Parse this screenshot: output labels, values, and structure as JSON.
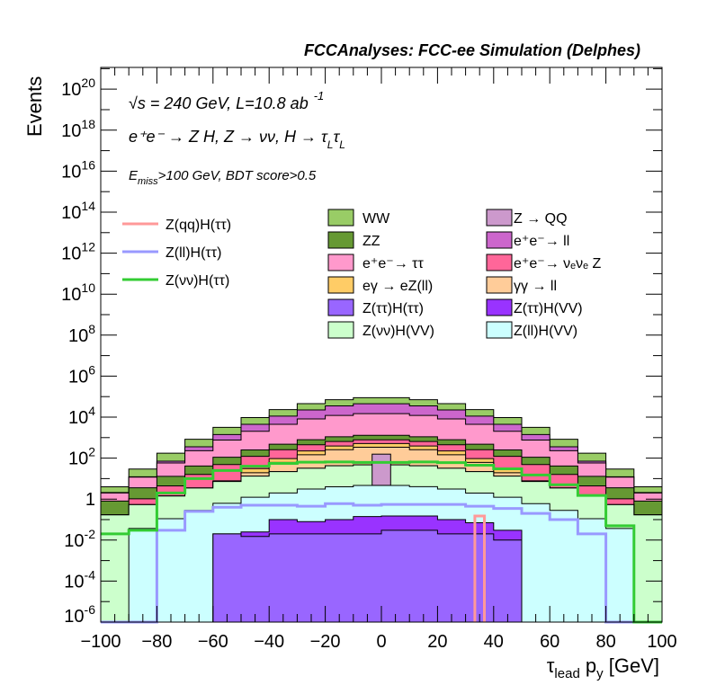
{
  "chart_data": {
    "type": "bar",
    "subtype": "stacked-histogram-log",
    "title": "FCCAnalyses: FCC-ee Simulation (Delphes)",
    "xlabel": {
      "main": "τ",
      "sub": "lead",
      "mid": " p",
      "sub2": "y",
      "unit": " [GeV]"
    },
    "ylabel": "Events",
    "xlim": [
      -100,
      100
    ],
    "ylim": [
      1e-06,
      1.15e+21
    ],
    "yscale": "log",
    "x_ticks": [
      -100,
      -80,
      -60,
      -40,
      -20,
      0,
      20,
      40,
      60,
      80,
      100
    ],
    "x_tick_labels": [
      "−100",
      "−80",
      "−60",
      "−40",
      "−20",
      "0",
      "20",
      "40",
      "60",
      "80",
      "100"
    ],
    "y_ticks": [
      {
        "base": "10",
        "exp": "20",
        "value": 1e+20
      },
      {
        "base": "10",
        "exp": "18",
        "value": 1e+18
      },
      {
        "base": "10",
        "exp": "16",
        "value": 1e+16
      },
      {
        "base": "10",
        "exp": "14",
        "value": 100000000000000.0
      },
      {
        "base": "10",
        "exp": "12",
        "value": 1000000000000.0
      },
      {
        "base": "10",
        "exp": "10",
        "value": 10000000000.0
      },
      {
        "base": "10",
        "exp": "8",
        "value": 100000000.0
      },
      {
        "base": "10",
        "exp": "6",
        "value": 1000000.0
      },
      {
        "base": "10",
        "exp": "4",
        "value": 10000.0
      },
      {
        "base": "10",
        "exp": "2",
        "value": 100.0
      },
      {
        "base": "1",
        "exp": "",
        "value": 1
      },
      {
        "base": "10",
        "exp": "-2",
        "value": 0.01
      },
      {
        "base": "10",
        "exp": "-4",
        "value": 0.0001
      },
      {
        "base": "10",
        "exp": "-6",
        "value": 1e-06
      }
    ],
    "annotations": {
      "energy": {
        "sqrt": "√",
        "text": "s = 240 GeV, L=10.8 ab",
        "sup": "-1"
      },
      "process": {
        "text": "e⁺e⁻ → Z H, Z → νν, H → τ",
        "sub1": "L",
        "mid": "τ",
        "sub2": "L"
      },
      "cuts": {
        "pre": "E",
        "sub": "miss",
        "text": ">100 GeV, BDT score>0.5"
      }
    },
    "bin_edges": [
      -100,
      -90,
      -80,
      -70,
      -60,
      -50,
      -40,
      -30,
      -20,
      -10,
      0,
      10,
      20,
      30,
      40,
      50,
      60,
      70,
      80,
      90,
      100
    ],
    "stack": [
      {
        "name": "Z(ττ)H(ττ)",
        "color": "#9966ff",
        "values": [
          0,
          0,
          0,
          0,
          0.02,
          0.015,
          0.02,
          0.02,
          0.02,
          0.02,
          0.03,
          0.03,
          0.02,
          0.02,
          0.01,
          0,
          0,
          0,
          0,
          0
        ]
      },
      {
        "name": "Z(ττ)H(VV)",
        "color": "#9933ff",
        "values": [
          0,
          0,
          0,
          0,
          0,
          0.01,
          0.08,
          0.06,
          0.08,
          0.12,
          0.12,
          0.12,
          0.08,
          0.05,
          0.02,
          0,
          0,
          0,
          0,
          0
        ]
      },
      {
        "name": "Z(ll)H(VV)",
        "color": "#ccffff",
        "values": [
          0,
          0.037,
          0.11,
          0.28,
          0.6,
          1.2,
          1.9,
          3.0,
          3.9,
          4.5,
          4.5,
          3.9,
          3.0,
          1.9,
          1.2,
          0.6,
          0.28,
          0.11,
          0.037,
          0
        ]
      },
      {
        "name": "Z(νν)H(VV)",
        "color": "#ccffcc",
        "values": [
          0.17,
          0.5,
          1.3,
          3.2,
          6.6,
          12,
          20,
          29,
          38,
          42,
          42,
          38,
          29,
          20,
          12,
          6.6,
          3.2,
          1.3,
          0.5,
          0.17
        ]
      },
      {
        "name": "Z → QQ",
        "color": "#cc99cc",
        "values": [
          0,
          0,
          0,
          0,
          0,
          0,
          0,
          0,
          0,
          0,
          0,
          0,
          0,
          0,
          0,
          0,
          0,
          0,
          0,
          0
        ],
        "extra_bin": {
          "low": -3.3,
          "high": 3.3,
          "value": 156
        }
      },
      {
        "name": "γγ → ll",
        "color": "#ffcc99",
        "values": [
          0,
          0,
          0,
          0,
          0,
          6,
          40,
          113,
          215,
          292,
          292,
          215,
          113,
          40,
          6,
          0,
          0,
          0,
          0,
          0
        ]
      },
      {
        "name": "eγ → eZ(ll)",
        "color": "#ffcc66",
        "values": [
          0,
          0,
          0,
          0,
          0.6,
          11.5,
          33,
          79,
          132,
          174,
          174,
          132,
          79,
          33,
          11.5,
          0.6,
          0,
          0,
          0,
          0
        ]
      },
      {
        "name": "e⁺e⁻→ νₑνₑ Z",
        "color": "#ff6699",
        "values": [
          0,
          0.5,
          3,
          12.5,
          41,
          92,
          162,
          223,
          257,
          263,
          263,
          257,
          223,
          162,
          92,
          41,
          12.5,
          3,
          0.5,
          0
        ]
      },
      {
        "name": "ZZ",
        "color": "#669933",
        "values": [
          0.63,
          2.5,
          8.5,
          25,
          61,
          128,
          222,
          347,
          450,
          512,
          512,
          450,
          347,
          222,
          128,
          61,
          25,
          8.5,
          2.5,
          0.63
        ]
      },
      {
        "name": "e⁺e⁻→ ττ",
        "color": "#ff99cc",
        "values": [
          1.2,
          8.2,
          45,
          188,
          650,
          1790,
          3990,
          7330,
          10930,
          13500,
          13500,
          10930,
          7330,
          3990,
          1790,
          650,
          188,
          45,
          8.2,
          1.2
        ]
      },
      {
        "name": "e⁺e⁻→ ll",
        "color": "#cc66cc",
        "values": [
          0.1,
          0.5,
          13,
          126,
          650,
          2400,
          6750,
          14260,
          23460,
          29900,
          29900,
          23460,
          14260,
          6750,
          2400,
          650,
          126,
          13,
          0.5,
          0.1
        ]
      },
      {
        "name": "WW",
        "color": "#99cc66",
        "values": [
          1.9,
          17,
          103,
          477,
          1750,
          5080,
          12200,
          23300,
          35300,
          44500,
          44500,
          35300,
          23300,
          12200,
          5080,
          1750,
          477,
          103,
          17,
          1.9
        ]
      }
    ],
    "lines": [
      {
        "name": "Z(qq)H(ττ)",
        "color": "#ff9999",
        "values": [
          0,
          0,
          0,
          0,
          0,
          0,
          0,
          0,
          0,
          0,
          0,
          0,
          0,
          0,
          0,
          0,
          0,
          0,
          0,
          0
        ],
        "extra_bin": {
          "low": 33.3,
          "high": 36.7,
          "value": 0.15
        }
      },
      {
        "name": "Z(ll)H(ττ)",
        "color": "#9999ff",
        "values": [
          0,
          0,
          0.03,
          0.25,
          0.4,
          0.5,
          0.5,
          0.45,
          0.6,
          0.5,
          0.55,
          0.55,
          0.55,
          0.45,
          0.35,
          0.2,
          0.1,
          0.02,
          0,
          0
        ]
      },
      {
        "name": "Z(νν)H(ττ)",
        "color": "#33cc33",
        "values": [
          0.02,
          0.03,
          2.0,
          10,
          25,
          40,
          55,
          63,
          65,
          62,
          62,
          65,
          60,
          45,
          30,
          15,
          5,
          1.5,
          0.05,
          0
        ]
      }
    ],
    "legend_placement": "top-center",
    "legend_lines": [
      "Z(qq)H(ττ)",
      "Z(ll)H(ττ)",
      "Z(νν)H(ττ)"
    ],
    "legend_fill_col1": [
      "WW",
      "ZZ",
      "e⁺e⁻→ ττ",
      "eγ → eZ(ll)",
      "Z(ττ)H(ττ)",
      "Z(νν)H(VV)"
    ],
    "legend_fill_col2": [
      "Z → QQ",
      "e⁺e⁻→ ll",
      "e⁺e⁻→ νₑνₑ Z",
      "γγ → ll",
      "Z(ττ)H(VV)",
      "Z(ll)H(VV)"
    ]
  }
}
